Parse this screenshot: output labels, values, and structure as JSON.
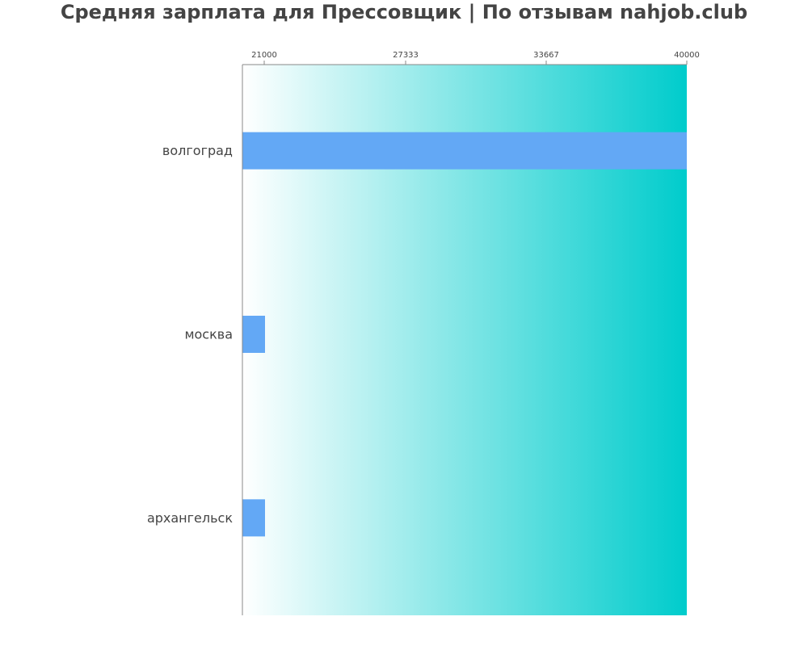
{
  "chart_data": {
    "type": "bar",
    "orientation": "horizontal",
    "title": "Средняя зарплата для Прессовщик | По отзывам nahjob.club",
    "xlabel": "",
    "ylabel": "",
    "categories": [
      "волгоград",
      "москва",
      "архангельск"
    ],
    "values": [
      40000,
      21000,
      21000
    ],
    "xlim": [
      21000,
      40000
    ],
    "x_ticks": [
      "21000",
      "27333",
      "33667",
      "40000"
    ],
    "x_axis_position": "top",
    "grid": false,
    "legend": "none",
    "bar_color": "#63a8f5",
    "background_gradient": [
      "#ffffff",
      "#00cccc"
    ]
  }
}
